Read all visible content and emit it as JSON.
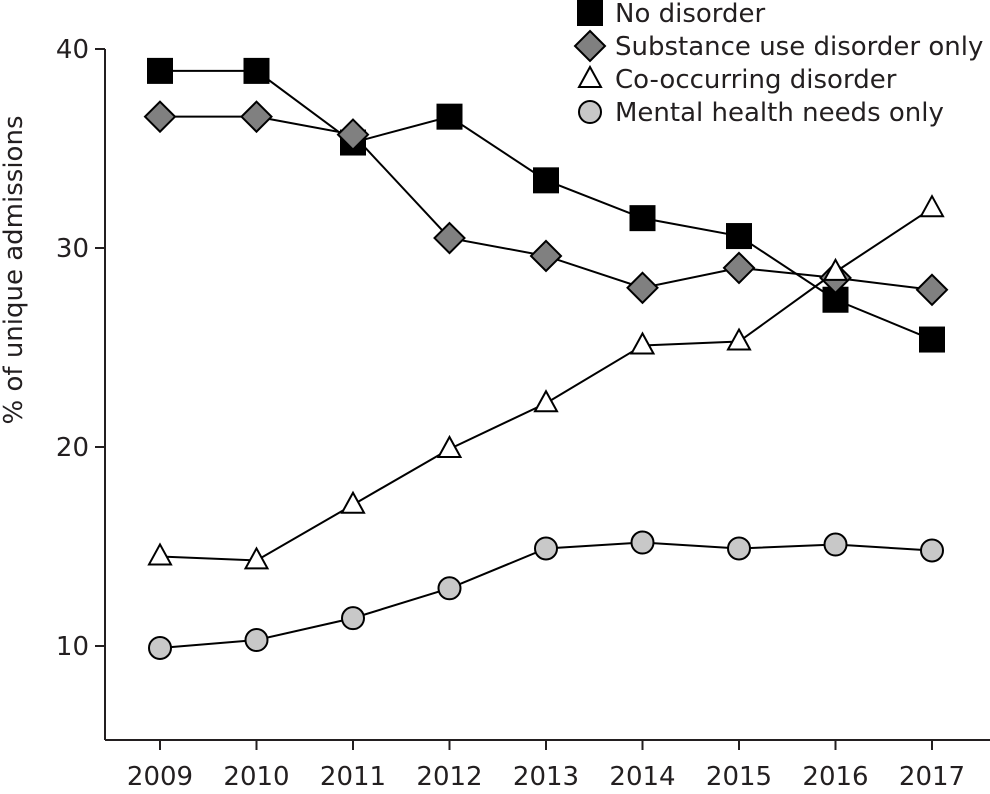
{
  "chart_data": {
    "type": "line",
    "title": "",
    "xlabel": "",
    "ylabel": "% of unique admissions",
    "x": [
      2009,
      2010,
      2011,
      2012,
      2013,
      2014,
      2015,
      2016,
      2017
    ],
    "x_tick_labels": [
      "2009",
      "2010",
      "2011",
      "2012",
      "2013",
      "2014",
      "2015",
      "2016",
      "2017"
    ],
    "y_ticks": [
      10,
      20,
      30,
      40
    ],
    "y_tick_labels": [
      "10",
      "20",
      "30",
      "40"
    ],
    "ylim": [
      5.3,
      40
    ],
    "grid": false,
    "legend_position": "top-right",
    "series": [
      {
        "name": "No disorder",
        "marker": "square",
        "color": "#000000",
        "values": [
          38.9,
          38.9,
          35.3,
          36.6,
          33.4,
          31.5,
          30.6,
          27.4,
          25.4
        ]
      },
      {
        "name": "Substance use disorder only",
        "marker": "diamond",
        "color": "#808080",
        "values": [
          36.6,
          36.6,
          35.7,
          30.5,
          29.6,
          28.0,
          29.0,
          28.5,
          27.9
        ]
      },
      {
        "name": "Co-occurring disorder",
        "marker": "triangle",
        "color": "#ffffff",
        "values": [
          14.5,
          14.3,
          17.1,
          19.9,
          22.2,
          25.1,
          25.3,
          28.8,
          32.0
        ]
      },
      {
        "name": "Mental health needs only",
        "marker": "circle",
        "color": "#c8c8c8",
        "values": [
          9.9,
          10.3,
          11.4,
          12.9,
          14.9,
          15.2,
          14.9,
          15.1,
          14.8
        ]
      }
    ]
  }
}
